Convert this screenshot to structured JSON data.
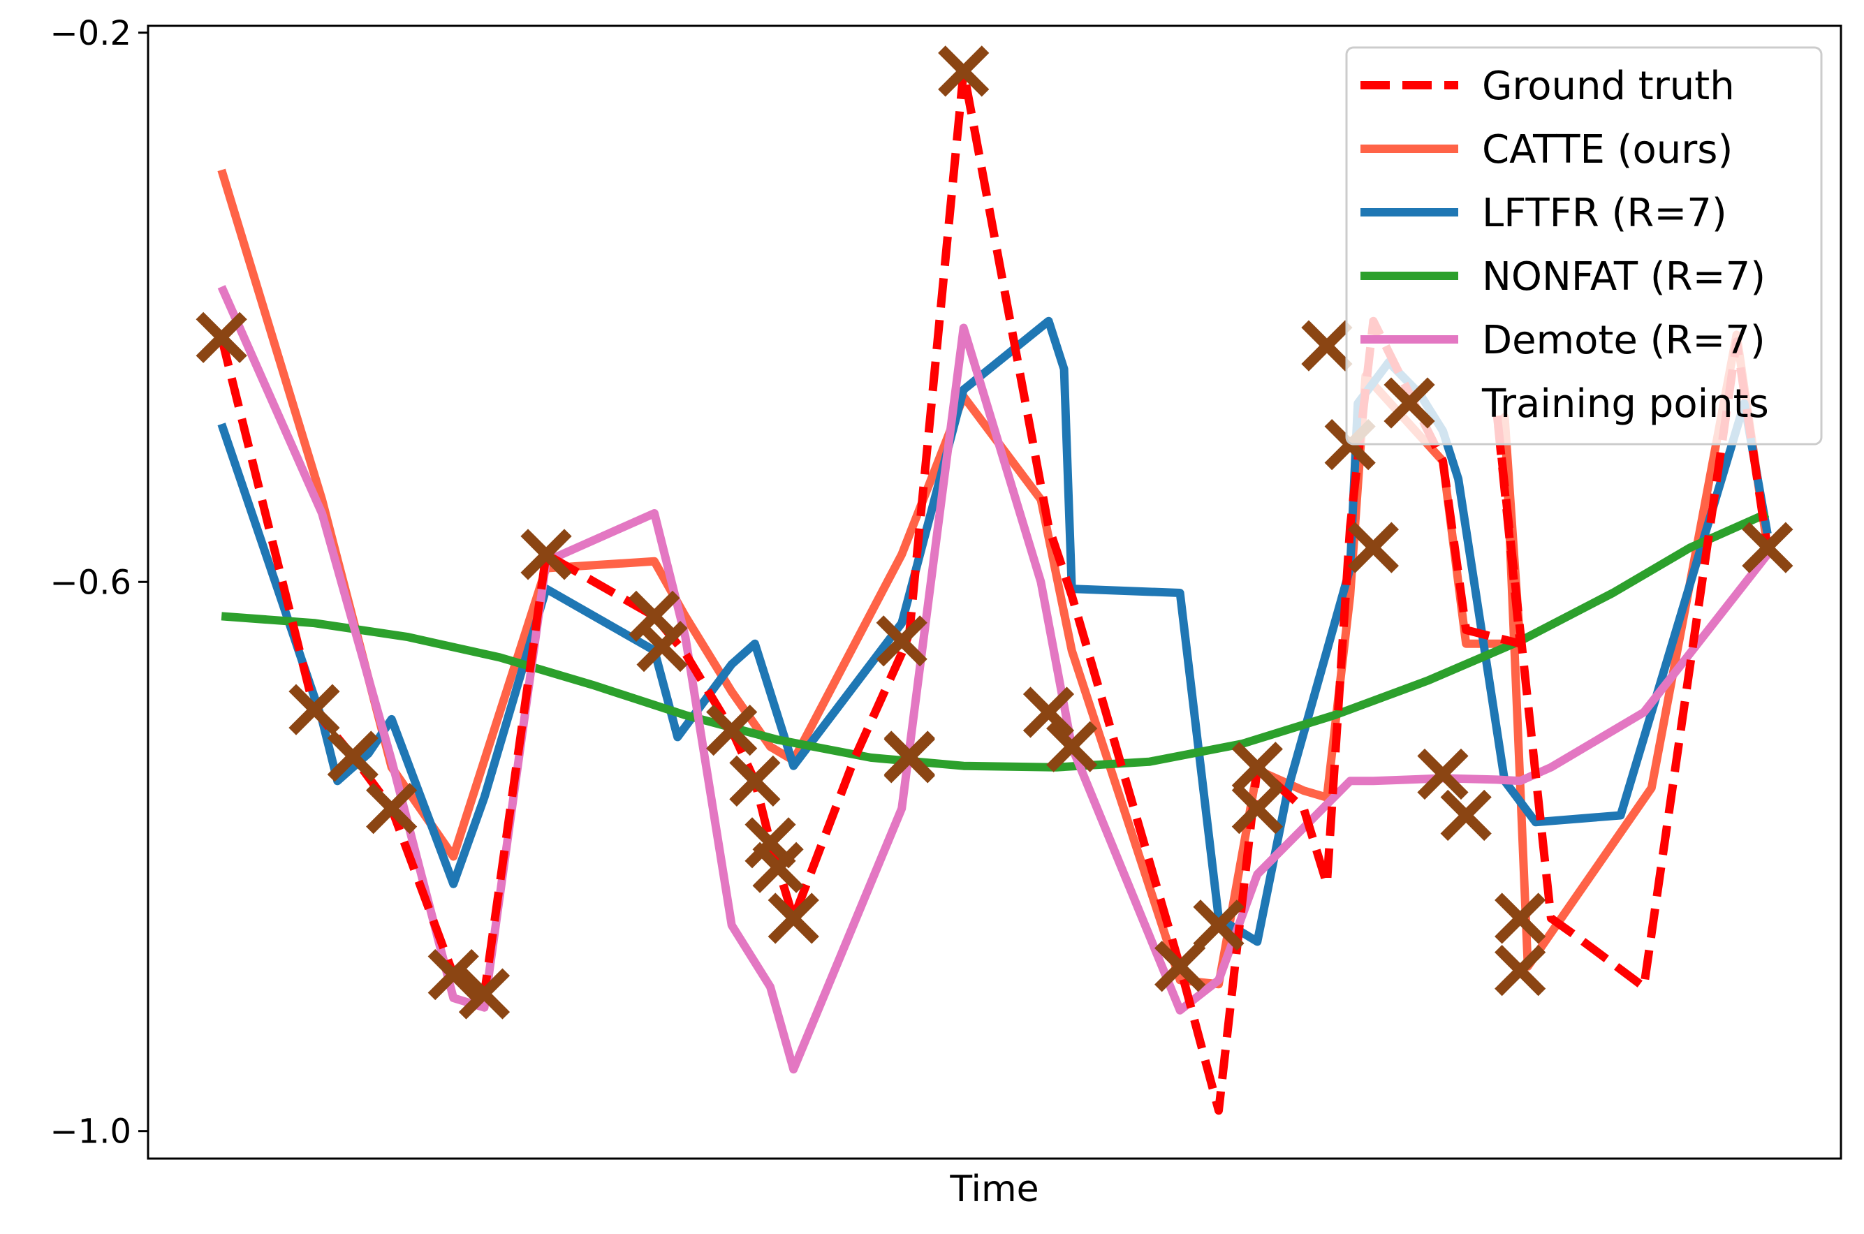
{
  "chart_data": {
    "type": "line",
    "title": "",
    "xlabel": "Time",
    "ylabel": "",
    "xlim": [
      -0.0475,
      1.0475
    ],
    "ylim": [
      -1.02,
      -0.195
    ],
    "yticks": [
      -1.0,
      -0.6,
      -0.2
    ],
    "ytick_labels": [
      "−1.0",
      "−0.6",
      "−0.2"
    ],
    "xticks": [],
    "grid": false,
    "legend_position": "top-right",
    "series": [
      {
        "name": "Ground truth",
        "color": "#ff0000",
        "style": "dashed",
        "x": [
          0.0,
          0.06,
          0.085,
          0.11,
          0.15,
          0.17,
          0.21,
          0.28,
          0.3,
          0.33,
          0.345,
          0.355,
          0.36,
          0.37,
          0.41,
          0.44,
          0.445,
          0.48,
          0.535,
          0.55,
          0.62,
          0.645,
          0.67,
          0.7,
          0.715,
          0.73,
          0.745,
          0.79,
          0.805,
          0.84,
          0.825,
          0.86,
          0.875,
          0.92,
          0.98,
          1.0
        ],
        "y": [
          -0.422,
          -0.693,
          -0.727,
          -0.765,
          -0.886,
          -0.9,
          -0.58,
          -0.625,
          -0.652,
          -0.708,
          -0.745,
          -0.79,
          -0.808,
          -0.845,
          -0.727,
          -0.652,
          -0.637,
          -0.228,
          -0.56,
          -0.61,
          -0.88,
          -0.985,
          -0.735,
          -0.765,
          -0.82,
          -0.56,
          -0.41,
          -0.512,
          -0.635,
          -0.645,
          -0.478,
          -0.845,
          -0.857,
          -0.895,
          -0.425,
          -0.575
        ]
      },
      {
        "name": "CATTE (ours)",
        "color": "#ff6347",
        "style": "solid",
        "x": [
          0.0,
          0.065,
          0.11,
          0.15,
          0.21,
          0.28,
          0.3,
          0.33,
          0.355,
          0.37,
          0.44,
          0.48,
          0.53,
          0.55,
          0.62,
          0.645,
          0.67,
          0.7,
          0.715,
          0.73,
          0.74,
          0.79,
          0.805,
          0.84,
          0.83,
          0.845,
          0.925,
          0.98,
          1.0
        ],
        "y": [
          -0.3,
          -0.54,
          -0.735,
          -0.8,
          -0.59,
          -0.585,
          -0.625,
          -0.68,
          -0.72,
          -0.73,
          -0.58,
          -0.465,
          -0.54,
          -0.65,
          -0.89,
          -0.893,
          -0.737,
          -0.752,
          -0.757,
          -0.61,
          -0.45,
          -0.512,
          -0.645,
          -0.645,
          -0.48,
          -0.88,
          -0.75,
          -0.42,
          -0.575
        ]
      },
      {
        "name": "LFTFR (R=7)",
        "color": "#1f77b4",
        "style": "solid",
        "x": [
          0.0,
          0.065,
          0.075,
          0.095,
          0.11,
          0.15,
          0.17,
          0.21,
          0.28,
          0.295,
          0.33,
          0.345,
          0.37,
          0.44,
          0.48,
          0.535,
          0.545,
          0.55,
          0.62,
          0.645,
          0.67,
          0.69,
          0.73,
          0.735,
          0.755,
          0.775,
          0.79,
          0.8,
          0.83,
          0.85,
          0.905,
          0.985,
          1.0
        ],
        "y": [
          -0.485,
          -0.7,
          -0.745,
          -0.725,
          -0.7,
          -0.82,
          -0.757,
          -0.605,
          -0.65,
          -0.713,
          -0.66,
          -0.645,
          -0.734,
          -0.63,
          -0.46,
          -0.41,
          -0.445,
          -0.605,
          -0.608,
          -0.845,
          -0.862,
          -0.75,
          -0.59,
          -0.47,
          -0.44,
          -0.463,
          -0.49,
          -0.525,
          -0.745,
          -0.775,
          -0.77,
          -0.47,
          -0.565
        ]
      },
      {
        "name": "NONFAT (R=7)",
        "color": "#2ca02c",
        "style": "solid",
        "x": [
          0.0,
          0.06,
          0.12,
          0.18,
          0.24,
          0.3,
          0.36,
          0.42,
          0.48,
          0.54,
          0.6,
          0.66,
          0.72,
          0.78,
          0.84,
          0.9,
          0.95,
          1.0
        ],
        "y": [
          -0.625,
          -0.63,
          -0.64,
          -0.655,
          -0.675,
          -0.697,
          -0.715,
          -0.728,
          -0.734,
          -0.735,
          -0.731,
          -0.718,
          -0.697,
          -0.672,
          -0.643,
          -0.608,
          -0.575,
          -0.55
        ]
      },
      {
        "name": "Demote (R=7)",
        "color": "#e377c2",
        "style": "solid",
        "x": [
          0.0,
          0.065,
          0.11,
          0.15,
          0.17,
          0.21,
          0.28,
          0.3,
          0.33,
          0.355,
          0.37,
          0.44,
          0.48,
          0.53,
          0.55,
          0.62,
          0.645,
          0.67,
          0.73,
          0.745,
          0.79,
          0.825,
          0.84,
          0.86,
          0.92,
          1.0
        ],
        "y": [
          -0.385,
          -0.55,
          -0.73,
          -0.903,
          -0.91,
          -0.585,
          -0.55,
          -0.64,
          -0.85,
          -0.895,
          -0.955,
          -0.765,
          -0.415,
          -0.6,
          -0.72,
          -0.912,
          -0.89,
          -0.813,
          -0.745,
          -0.745,
          -0.743,
          -0.744,
          -0.745,
          -0.735,
          -0.695,
          -0.58
        ]
      }
    ],
    "training_points": {
      "name": "Training points",
      "color": "#8b4513",
      "marker": "x",
      "x": [
        0.0,
        0.06,
        0.085,
        0.11,
        0.15,
        0.17,
        0.21,
        0.28,
        0.285,
        0.33,
        0.345,
        0.355,
        0.36,
        0.37,
        0.44,
        0.445,
        0.445,
        0.48,
        0.535,
        0.55,
        0.62,
        0.645,
        0.67,
        0.67,
        0.715,
        0.73,
        0.745,
        0.79,
        0.805,
        0.84,
        0.84,
        1.0
      ],
      "y": [
        -0.422,
        -0.693,
        -0.727,
        -0.765,
        -0.886,
        -0.9,
        -0.58,
        -0.625,
        -0.647,
        -0.708,
        -0.745,
        -0.79,
        -0.808,
        -0.845,
        -0.643,
        -0.727,
        -0.728,
        -0.228,
        -0.695,
        -0.72,
        -0.88,
        -0.85,
        -0.735,
        -0.765,
        -0.428,
        -0.5,
        -0.575,
        -0.74,
        -0.77,
        -0.883,
        -0.845,
        -0.575
      ]
    }
  }
}
